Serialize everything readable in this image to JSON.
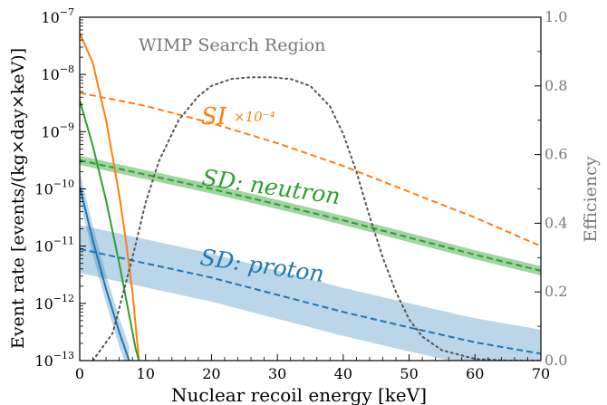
{
  "chart_data": {
    "type": "line",
    "xlabel": "Nuclear recoil energy [keV]",
    "ylabel": "Event rate [events/(kg×day×keV)]",
    "y2label": "Efficiency",
    "xlim": [
      0,
      70
    ],
    "ylim_log10": [
      -13,
      -7
    ],
    "y2lim": [
      0,
      1.0
    ],
    "x_ticks": [
      "0",
      "10",
      "20",
      "30",
      "40",
      "50",
      "60",
      "70"
    ],
    "y_ticks": [
      {
        "base": "10",
        "exp": "−7"
      },
      {
        "base": "10",
        "exp": "−8"
      },
      {
        "base": "10",
        "exp": "−9"
      },
      {
        "base": "10",
        "exp": "−10"
      },
      {
        "base": "10",
        "exp": "−11"
      },
      {
        "base": "10",
        "exp": "−12"
      },
      {
        "base": "10",
        "exp": "−13"
      }
    ],
    "y2_ticks": [
      "0.0",
      "0.2",
      "0.4",
      "0.6",
      "0.8",
      "1.0"
    ],
    "grid": false,
    "annotations": {
      "region": "WIMP Search Region",
      "si_label": "SI",
      "si_scale": "×10⁻⁴",
      "sd_neutron": "SD: neutron",
      "sd_proton": "SD: proton"
    },
    "colors": {
      "si": "#ff7f0e",
      "sd_neutron": "#2ca02c",
      "sd_proton": "#1f77b4",
      "efficiency": "#555555"
    },
    "series": [
      {
        "key": "si_dashed",
        "axis": "left",
        "style": "dashed",
        "x": [
          0,
          10,
          20,
          30,
          40,
          50,
          60,
          70
        ],
        "log10y": [
          -8.32,
          -8.55,
          -8.85,
          -9.2,
          -9.6,
          -10.05,
          -10.5,
          -11.0
        ]
      },
      {
        "key": "sd_neutron_dashed",
        "axis": "left",
        "style": "dashed",
        "band_log10": 0.08,
        "x": [
          0,
          10,
          20,
          30,
          40,
          50,
          60,
          70
        ],
        "log10y": [
          -9.5,
          -9.75,
          -10.0,
          -10.27,
          -10.55,
          -10.85,
          -11.15,
          -11.43
        ]
      },
      {
        "key": "sd_proton_dashed",
        "axis": "left",
        "style": "dashed",
        "band_log10": 0.42,
        "x": [
          0,
          10,
          20,
          30,
          40,
          50,
          60,
          70
        ],
        "log10y": [
          -11.05,
          -11.3,
          -11.55,
          -11.85,
          -12.15,
          -12.42,
          -12.68,
          -12.88
        ]
      },
      {
        "key": "si_solid",
        "axis": "left",
        "style": "solid",
        "x": [
          0,
          2,
          4,
          6,
          7,
          8,
          8.5,
          9
        ],
        "log10y": [
          -7.28,
          -7.8,
          -8.8,
          -10.1,
          -10.9,
          -11.8,
          -12.4,
          -13.0
        ]
      },
      {
        "key": "sd_neutron_solid",
        "axis": "left",
        "style": "solid",
        "x": [
          0,
          2,
          4,
          6,
          7,
          8,
          8.5,
          9
        ],
        "log10y": [
          -8.45,
          -9.25,
          -10.2,
          -11.3,
          -11.9,
          -12.5,
          -12.8,
          -13.0
        ]
      },
      {
        "key": "sd_proton_solid",
        "axis": "left",
        "style": "solid",
        "band_log10": 0.25,
        "x": [
          0,
          2,
          4,
          6,
          7.5
        ],
        "log10y": [
          -9.95,
          -10.9,
          -11.75,
          -12.5,
          -13.0
        ]
      },
      {
        "key": "efficiency",
        "axis": "right",
        "style": "dotted",
        "x": [
          2,
          5,
          8,
          10,
          12,
          15,
          18,
          20,
          23,
          26,
          29,
          32,
          35,
          38,
          40,
          42,
          44,
          46,
          48,
          50,
          52,
          55,
          60,
          65,
          70
        ],
        "y": [
          0.0,
          0.08,
          0.3,
          0.46,
          0.58,
          0.7,
          0.77,
          0.8,
          0.82,
          0.825,
          0.825,
          0.82,
          0.8,
          0.74,
          0.66,
          0.55,
          0.42,
          0.3,
          0.2,
          0.12,
          0.07,
          0.03,
          0.005,
          0.0,
          0.0
        ]
      }
    ]
  }
}
